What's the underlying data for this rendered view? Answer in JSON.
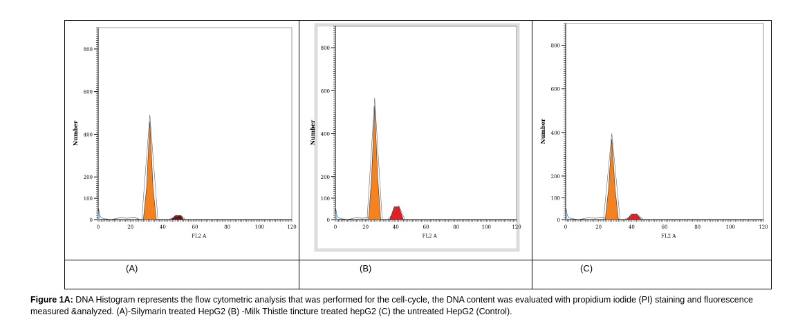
{
  "chart_data": [
    {
      "type": "area",
      "panel_label": "(A)",
      "xlabel": "FL2 A",
      "ylabel": "Number",
      "xlim": [
        0,
        120
      ],
      "ylim": [
        0,
        900
      ],
      "xticks": [
        0,
        20,
        40,
        60,
        80,
        100,
        120
      ],
      "yticks": [
        0,
        100,
        200,
        400,
        600,
        800
      ],
      "series": [
        {
          "color": "#f58220",
          "x": [
            28,
            30,
            32,
            34,
            36
          ],
          "y": [
            0,
            150,
            460,
            150,
            0
          ]
        },
        {
          "color": "#6b0f0f",
          "x": [
            45,
            48,
            51,
            53
          ],
          "y": [
            0,
            20,
            20,
            0
          ]
        }
      ]
    },
    {
      "type": "area",
      "panel_label": "(B)",
      "xlabel": "FL2 A",
      "ylabel": "Number",
      "xlim": [
        0,
        120
      ],
      "ylim": [
        0,
        900
      ],
      "xticks": [
        0,
        20,
        40,
        60,
        80,
        100,
        120
      ],
      "yticks": [
        0,
        100,
        200,
        400,
        600,
        800
      ],
      "series": [
        {
          "color": "#f58220",
          "x": [
            22,
            24,
            26,
            28,
            30
          ],
          "y": [
            0,
            200,
            530,
            200,
            0
          ]
        },
        {
          "color": "#e31e24",
          "x": [
            36,
            39,
            42,
            45
          ],
          "y": [
            0,
            60,
            60,
            0
          ]
        }
      ]
    },
    {
      "type": "area",
      "panel_label": "(C)",
      "xlabel": "FL2 A",
      "ylabel": "Number",
      "xlim": [
        0,
        120
      ],
      "ylim": [
        0,
        900
      ],
      "xticks": [
        0,
        20,
        40,
        60,
        80,
        100,
        120
      ],
      "yticks": [
        0,
        100,
        200,
        400,
        600,
        800
      ],
      "series": [
        {
          "color": "#f58220",
          "x": [
            24,
            26,
            28,
            30,
            32
          ],
          "y": [
            0,
            140,
            370,
            140,
            0
          ]
        },
        {
          "color": "#e31e24",
          "x": [
            37,
            40,
            43,
            46
          ],
          "y": [
            0,
            25,
            25,
            0
          ]
        }
      ]
    }
  ],
  "caption": {
    "bold": "Figure 1A:",
    "text": " DNA Histogram represents the flow cytometric analysis that was performed for the cell-cycle, the DNA content was evaluated with propidium iodide (PI) staining and fluorescence measured &analyzed. (A)-Silymarin treated HepG2 (B) -Milk Thistle tincture treated hepG2 (C) the untreated HepG2 (Control)."
  }
}
